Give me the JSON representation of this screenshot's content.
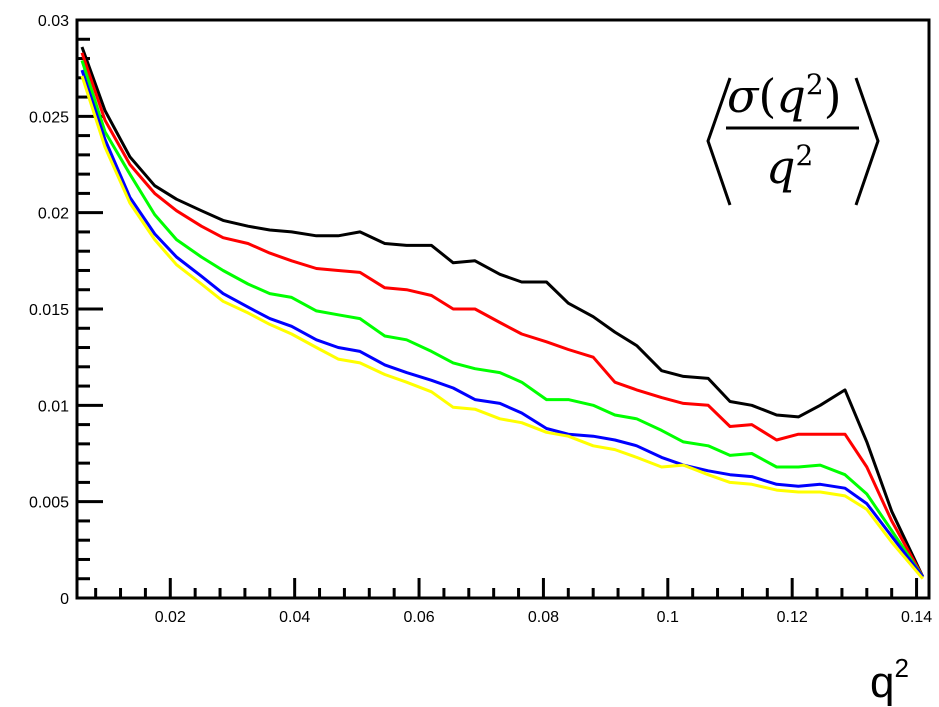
{
  "chart_data": {
    "type": "line",
    "title": "",
    "xlabel": "q",
    "xlabel_superscript": "2",
    "ylabel": "",
    "annotation": {
      "label": "⟨σ(q²)/q²⟩",
      "numerator_sigma": "σ",
      "numerator_paren_open": "(",
      "numerator_q": "q",
      "numerator_sup": "2",
      "numerator_paren_close": ")",
      "denominator_q": "q",
      "denominator_sup": "2"
    },
    "xlim": [
      0.005,
      0.142
    ],
    "ylim": [
      0,
      0.03
    ],
    "x_ticks": [
      0.02,
      0.04,
      0.06,
      0.08,
      0.1,
      0.12,
      0.14
    ],
    "x_tick_labels": [
      "0.02",
      "0.04",
      "0.06",
      "0.08",
      "0.1",
      "0.12",
      "0.14"
    ],
    "y_ticks": [
      0,
      0.005,
      0.01,
      0.015,
      0.02,
      0.025,
      0.03
    ],
    "y_tick_labels": [
      "0",
      "0.005",
      "0.01",
      "0.015",
      "0.02",
      "0.025",
      "0.03"
    ],
    "grid": false,
    "x": [
      0.0058,
      0.0095,
      0.0135,
      0.0175,
      0.021,
      0.025,
      0.0285,
      0.0325,
      0.036,
      0.0395,
      0.0435,
      0.047,
      0.0505,
      0.0545,
      0.058,
      0.062,
      0.0655,
      0.069,
      0.073,
      0.0765,
      0.0805,
      0.084,
      0.088,
      0.0915,
      0.095,
      0.099,
      0.1025,
      0.1065,
      0.11,
      0.1135,
      0.1175,
      0.121,
      0.1245,
      0.1285,
      0.132,
      0.136,
      0.141
    ],
    "series": [
      {
        "name": "black",
        "color": "#000000",
        "values": [
          0.0286,
          0.0253,
          0.0229,
          0.0214,
          0.0207,
          0.0201,
          0.0196,
          0.0193,
          0.0191,
          0.019,
          0.0188,
          0.0188,
          0.019,
          0.0184,
          0.0183,
          0.0183,
          0.0174,
          0.0175,
          0.0168,
          0.0164,
          0.0164,
          0.0153,
          0.0146,
          0.0138,
          0.0131,
          0.0118,
          0.0115,
          0.0114,
          0.0102,
          0.01,
          0.0095,
          0.0094,
          0.01,
          0.0108,
          0.0081,
          0.0045,
          0.0011
        ]
      },
      {
        "name": "red",
        "color": "#ff0000",
        "values": [
          0.0283,
          0.0248,
          0.0225,
          0.021,
          0.0201,
          0.0193,
          0.0187,
          0.0184,
          0.0179,
          0.0175,
          0.0171,
          0.017,
          0.0169,
          0.0161,
          0.016,
          0.0157,
          0.015,
          0.015,
          0.0143,
          0.0137,
          0.0133,
          0.0129,
          0.0125,
          0.0112,
          0.0108,
          0.0104,
          0.0101,
          0.01,
          0.0089,
          0.009,
          0.0082,
          0.0085,
          0.0085,
          0.0085,
          0.0068,
          0.004,
          0.0011
        ]
      },
      {
        "name": "green",
        "color": "#00ff00",
        "values": [
          0.0279,
          0.0242,
          0.022,
          0.0199,
          0.0186,
          0.0177,
          0.017,
          0.0163,
          0.0158,
          0.0156,
          0.0149,
          0.0147,
          0.0145,
          0.0136,
          0.0134,
          0.0128,
          0.0122,
          0.0119,
          0.0117,
          0.0112,
          0.0103,
          0.0103,
          0.01,
          0.0095,
          0.0093,
          0.0087,
          0.0081,
          0.0079,
          0.0074,
          0.0075,
          0.0068,
          0.0068,
          0.0069,
          0.0064,
          0.0054,
          0.0035,
          0.0011
        ]
      },
      {
        "name": "blue",
        "color": "#0000ff",
        "values": [
          0.0274,
          0.0238,
          0.0208,
          0.0189,
          0.0177,
          0.0167,
          0.0158,
          0.0151,
          0.0145,
          0.0141,
          0.0134,
          0.013,
          0.0128,
          0.0121,
          0.0117,
          0.0113,
          0.0109,
          0.0103,
          0.0101,
          0.0096,
          0.0088,
          0.0085,
          0.0084,
          0.0082,
          0.0079,
          0.0073,
          0.0069,
          0.0066,
          0.0064,
          0.0063,
          0.0059,
          0.0058,
          0.0059,
          0.0057,
          0.0049,
          0.0032,
          0.0011
        ]
      },
      {
        "name": "yellow",
        "color": "#ffff00",
        "values": [
          0.0271,
          0.0234,
          0.0205,
          0.0186,
          0.0173,
          0.0163,
          0.0154,
          0.0148,
          0.0142,
          0.0137,
          0.013,
          0.0124,
          0.0122,
          0.0116,
          0.0112,
          0.0107,
          0.0099,
          0.0098,
          0.0093,
          0.0091,
          0.0086,
          0.0084,
          0.0079,
          0.0077,
          0.0073,
          0.0068,
          0.0069,
          0.0064,
          0.006,
          0.0059,
          0.0056,
          0.0055,
          0.0055,
          0.0053,
          0.0046,
          0.0029,
          0.001
        ]
      }
    ]
  }
}
